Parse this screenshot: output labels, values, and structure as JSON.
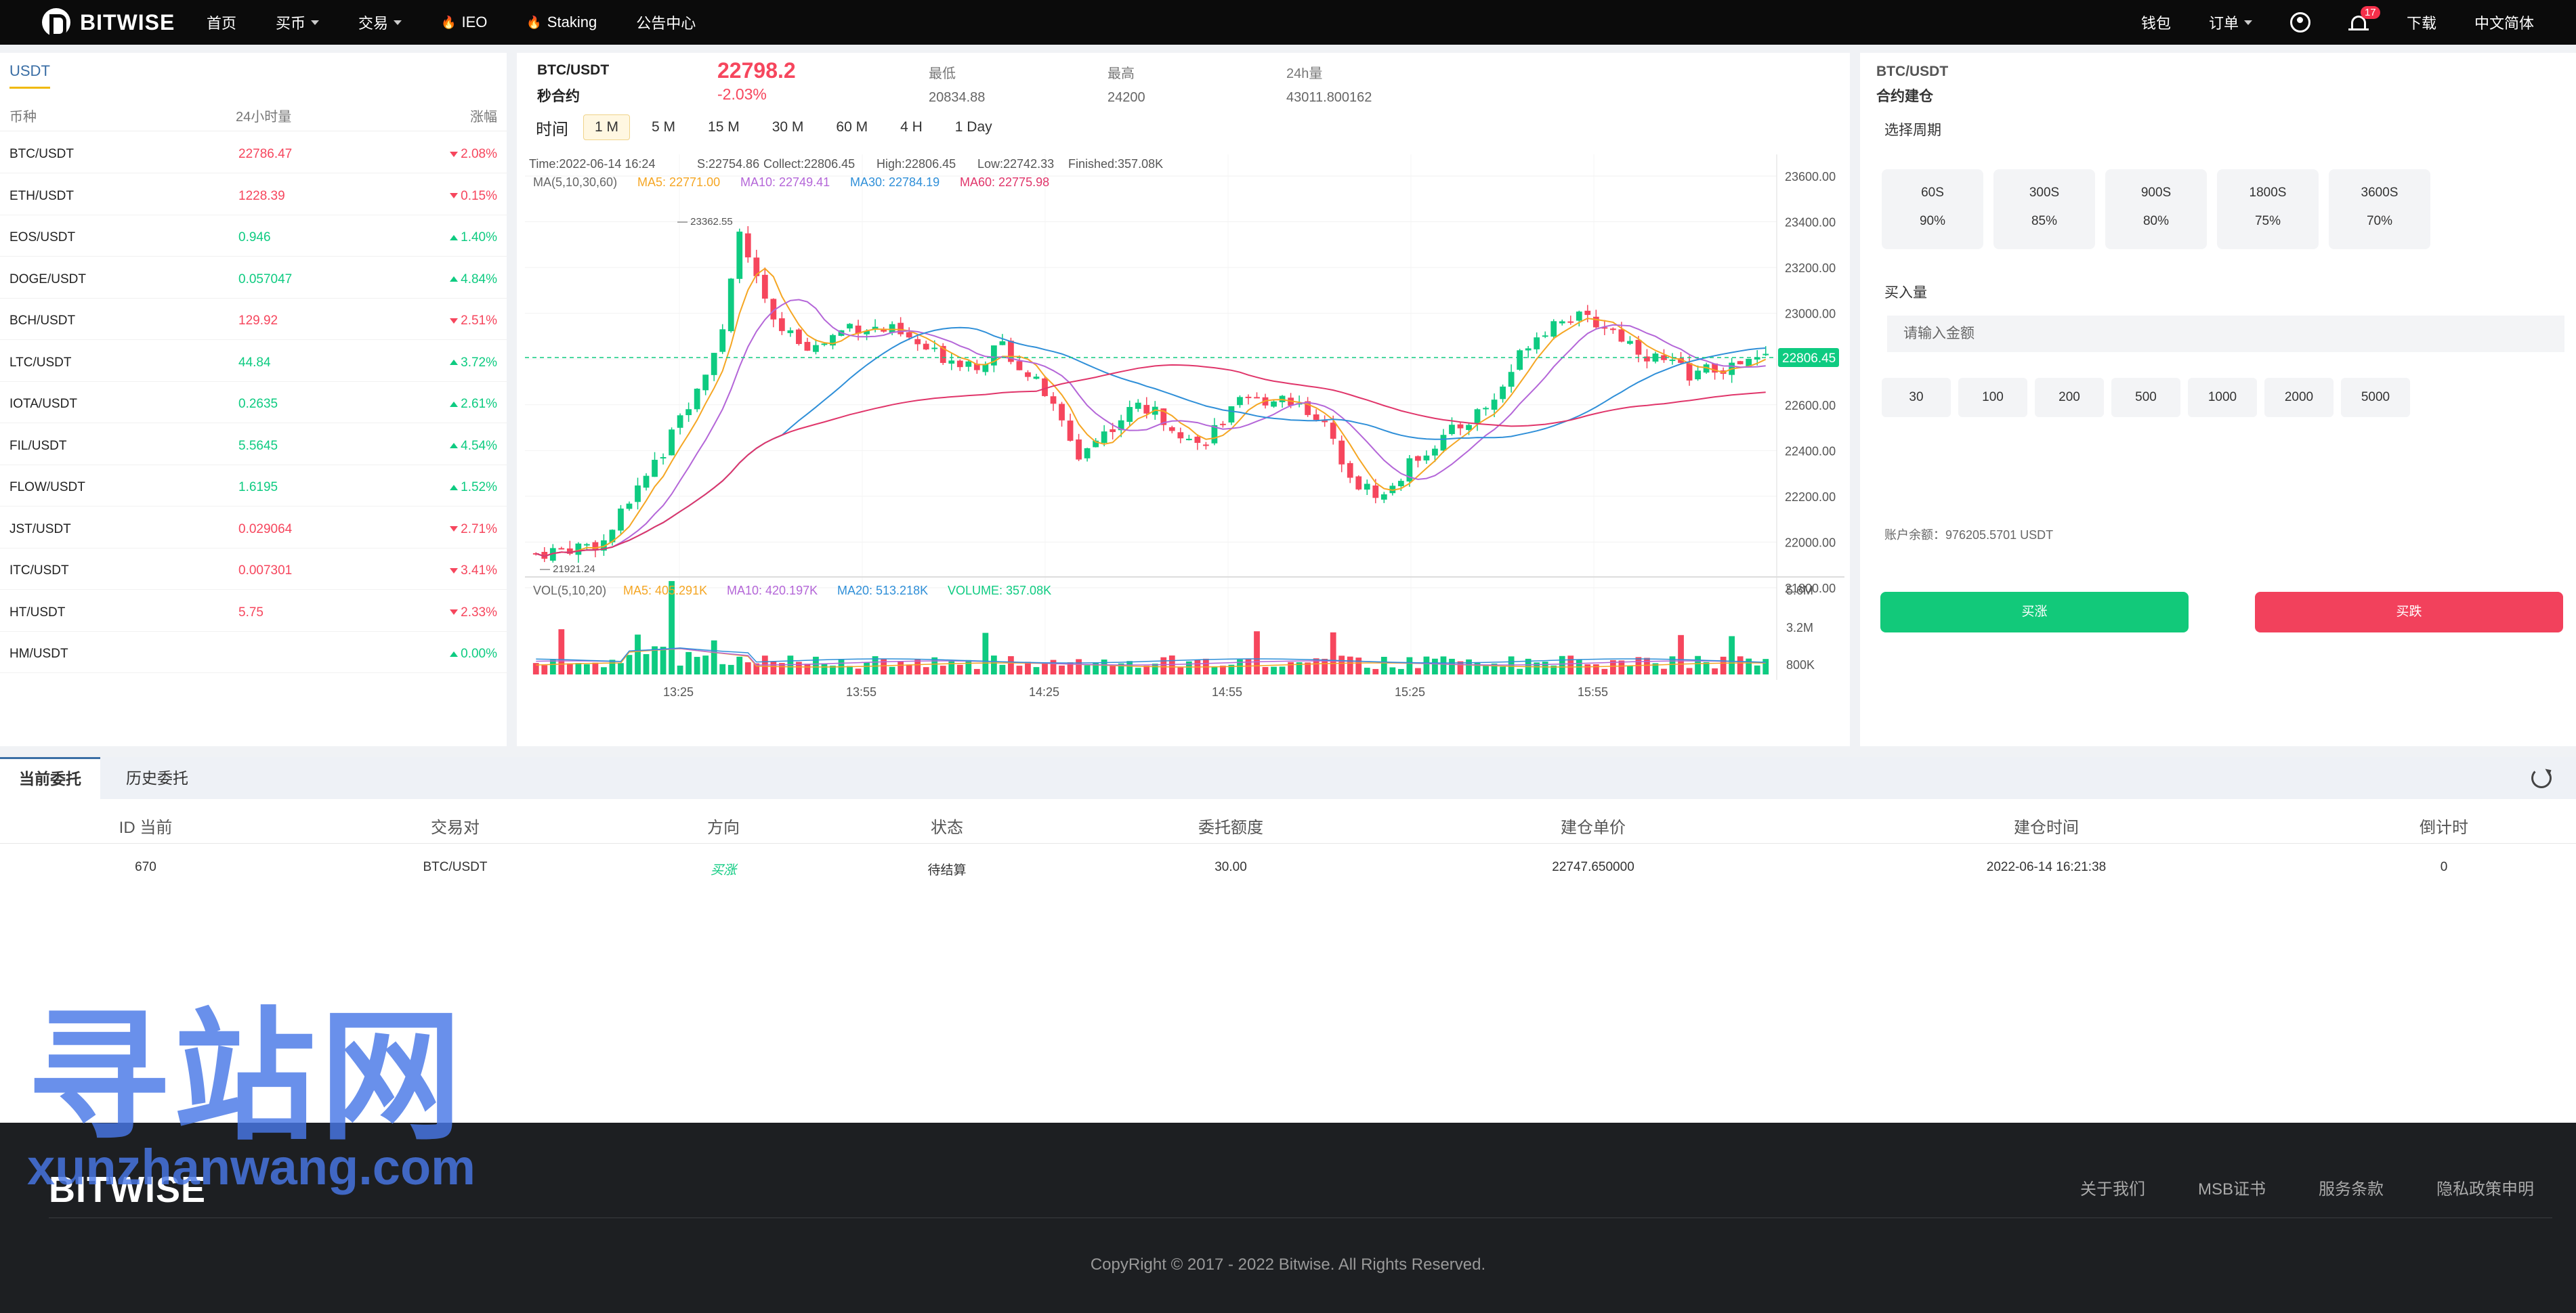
{
  "nav": {
    "brand": "BITWISE",
    "items": [
      {
        "label": "首页",
        "dropdown": false,
        "hot": false
      },
      {
        "label": "买币",
        "dropdown": true,
        "hot": false
      },
      {
        "label": "交易",
        "dropdown": true,
        "hot": false
      },
      {
        "label": "IEO",
        "dropdown": false,
        "hot": true
      },
      {
        "label": "Staking",
        "dropdown": false,
        "hot": true
      },
      {
        "label": "公告中心",
        "dropdown": false,
        "hot": false
      }
    ],
    "wallet": "钱包",
    "orders": "订单",
    "notifications": "17",
    "download": "下载",
    "language": "中文简体"
  },
  "market": {
    "tab": "USDT",
    "headers": {
      "symbol": "币种",
      "volume": "24小时量",
      "change": "涨幅"
    },
    "rows": [
      {
        "symbol": "BTC/USDT",
        "price": "22786.47",
        "change": "2.08%",
        "dir": "down"
      },
      {
        "symbol": "ETH/USDT",
        "price": "1228.39",
        "change": "0.15%",
        "dir": "down"
      },
      {
        "symbol": "EOS/USDT",
        "price": "0.946",
        "change": "1.40%",
        "dir": "up"
      },
      {
        "symbol": "DOGE/USDT",
        "price": "0.057047",
        "change": "4.84%",
        "dir": "up"
      },
      {
        "symbol": "BCH/USDT",
        "price": "129.92",
        "change": "2.51%",
        "dir": "down"
      },
      {
        "symbol": "LTC/USDT",
        "price": "44.84",
        "change": "3.72%",
        "dir": "up"
      },
      {
        "symbol": "IOTA/USDT",
        "price": "0.2635",
        "change": "2.61%",
        "dir": "up"
      },
      {
        "symbol": "FIL/USDT",
        "price": "5.5645",
        "change": "4.54%",
        "dir": "up"
      },
      {
        "symbol": "FLOW/USDT",
        "price": "1.6195",
        "change": "1.52%",
        "dir": "up"
      },
      {
        "symbol": "JST/USDT",
        "price": "0.029064",
        "change": "2.71%",
        "dir": "down"
      },
      {
        "symbol": "ITC/USDT",
        "price": "0.007301",
        "change": "3.41%",
        "dir": "down"
      },
      {
        "symbol": "HT/USDT",
        "price": "5.75",
        "change": "2.33%",
        "dir": "down"
      },
      {
        "symbol": "HM/USDT",
        "price": "",
        "change": "0.00%",
        "dir": "up"
      }
    ]
  },
  "chart_header": {
    "symbol": "BTC/USDT",
    "contract": "秒合约",
    "price": "22798.2",
    "change": "-2.03%",
    "low_label": "最低",
    "low": "20834.88",
    "high_label": "最高",
    "high": "24200",
    "vol_label": "24h量",
    "vol": "43011.800162",
    "interval_label": "时间",
    "intervals": [
      "1 M",
      "5 M",
      "15 M",
      "30 M",
      "60 M",
      "4 H",
      "1 Day"
    ],
    "active_interval": "1 M"
  },
  "chart_data": {
    "type": "candlestick",
    "info_line": {
      "time": "Time:2022-06-14 16:24",
      "open": "S:22754.86",
      "close": "Collect:22806.45",
      "high": "High:22806.45",
      "low": "Low:22742.33",
      "volume": "Finished:357.08K"
    },
    "ma_legend": [
      {
        "label": "MA(5,10,30,60)",
        "color": "#666666"
      },
      {
        "label": "MA5: 22771.00",
        "color": "#f5a623"
      },
      {
        "label": "MA10: 22749.41",
        "color": "#b466d8"
      },
      {
        "label": "MA30: 22784.19",
        "color": "#2f8fd8"
      },
      {
        "label": "MA60: 22775.98",
        "color": "#e0356a"
      }
    ],
    "vol_legend": [
      {
        "label": "VOL(5,10,20)",
        "color": "#666666"
      },
      {
        "label": "MA5: 405.291K",
        "color": "#f5a623"
      },
      {
        "label": "MA10: 420.197K",
        "color": "#b466d8"
      },
      {
        "label": "MA20: 513.218K",
        "color": "#2f8fd8"
      },
      {
        "label": "VOLUME: 357.08K",
        "color": "#0ecb81"
      }
    ],
    "y_ticks": [
      "23600.00",
      "23400.00",
      "23200.00",
      "23000.00",
      "22800.00",
      "22600.00",
      "22400.00",
      "22200.00",
      "22000.00",
      "21800.00"
    ],
    "y_range": [
      21800,
      23600
    ],
    "vol_ticks": [
      "5.6M",
      "3.2M",
      "800K"
    ],
    "x_ticks": [
      "13:25",
      "13:55",
      "14:25",
      "14:55",
      "15:25",
      "15:55"
    ],
    "last_price": "22806.45",
    "max_mark": "23362.55",
    "min_mark": "21921.24",
    "up_color": "#0ecb81",
    "down_color": "#f6465d",
    "path_points": [
      [
        0,
        21950
      ],
      [
        8,
        22000
      ],
      [
        15,
        22400
      ],
      [
        22,
        22900
      ],
      [
        24,
        23350
      ],
      [
        28,
        22950
      ],
      [
        33,
        22850
      ],
      [
        37,
        22950
      ],
      [
        42,
        22920
      ],
      [
        47,
        22820
      ],
      [
        52,
        22780
      ],
      [
        55,
        22860
      ],
      [
        60,
        22650
      ],
      [
        64,
        22380
      ],
      [
        67,
        22480
      ],
      [
        71,
        22600
      ],
      [
        75,
        22520
      ],
      [
        78,
        22420
      ],
      [
        83,
        22600
      ],
      [
        88,
        22640
      ],
      [
        92,
        22560
      ],
      [
        97,
        22250
      ],
      [
        100,
        22200
      ],
      [
        104,
        22380
      ],
      [
        108,
        22480
      ],
      [
        113,
        22620
      ],
      [
        117,
        22880
      ],
      [
        121,
        22990
      ],
      [
        126,
        22950
      ],
      [
        131,
        22820
      ],
      [
        136,
        22740
      ],
      [
        141,
        22760
      ],
      [
        145,
        22806
      ]
    ]
  },
  "trade": {
    "symbol": "BTC/USDT",
    "subtitle": "合约建仓",
    "period_label": "选择周期",
    "periods": [
      {
        "time": "60S",
        "rate": "90%"
      },
      {
        "time": "300S",
        "rate": "85%"
      },
      {
        "time": "900S",
        "rate": "80%"
      },
      {
        "time": "1800S",
        "rate": "75%"
      },
      {
        "time": "3600S",
        "rate": "70%"
      }
    ],
    "amount_label": "买入量",
    "amount_placeholder": "请输入金额",
    "quick_amounts": [
      "30",
      "100",
      "200",
      "500",
      "1000",
      "2000",
      "5000"
    ],
    "balance": "账户余额：976205.5701 USDT",
    "buy_up": "买涨",
    "buy_down": "买跌"
  },
  "orders": {
    "tabs": [
      "当前委托",
      "历史委托"
    ],
    "headers": [
      "ID 当前",
      "交易对",
      "方向",
      "状态",
      "委托额度",
      "建仓单价",
      "建仓时间",
      "倒计时"
    ],
    "rows": [
      [
        "670",
        "BTC/USDT",
        "买涨",
        "待结算",
        "30.00",
        "22747.650000",
        "2022-06-14 16:21:38",
        "0"
      ]
    ]
  },
  "footer": {
    "brand": "BITWISE",
    "links": [
      "关于我们",
      "MSB证书",
      "服务条款",
      "隐私政策申明"
    ],
    "copyright": "CopyRight © 2017 - 2022 Bitwise. All Rights Reserved."
  },
  "watermark": {
    "cn": "寻站网",
    "en": "xunzhanwang.com"
  }
}
